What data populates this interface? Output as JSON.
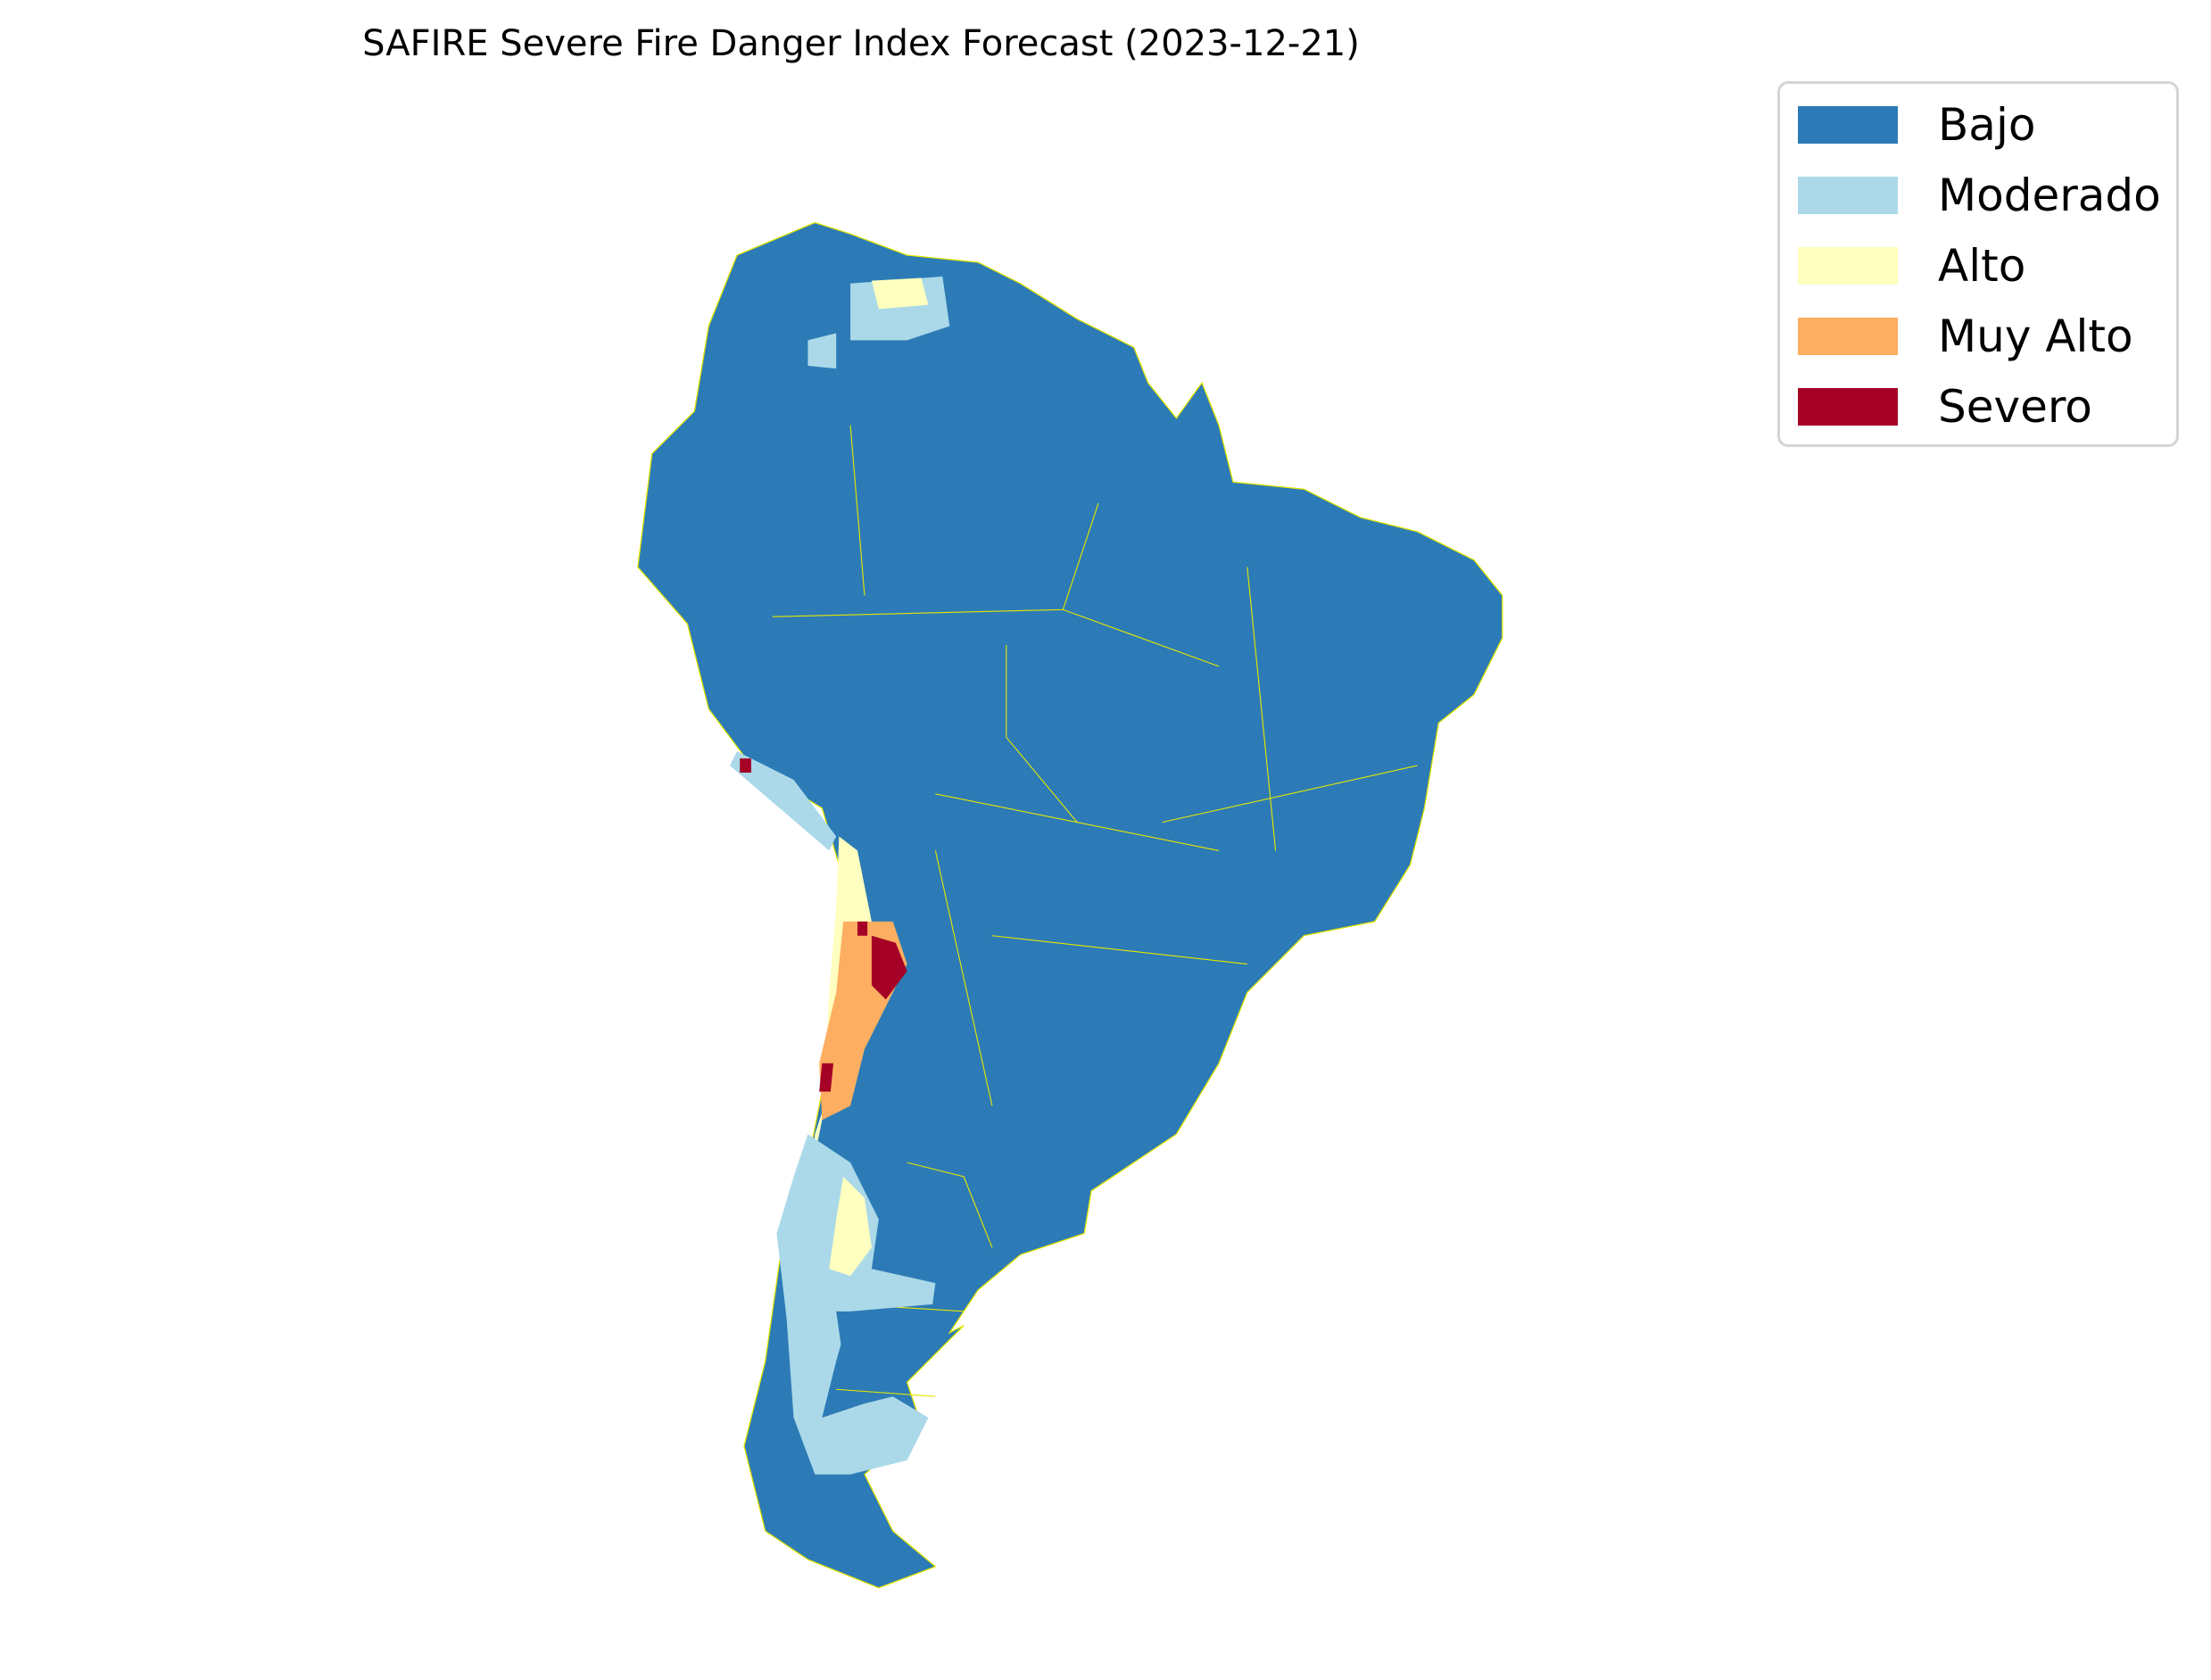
{
  "chart_data": {
    "type": "heatmap",
    "title": "SAFIRE Severe Fire Danger Index Forecast (2023-12-21)",
    "region": "South America",
    "legend_placement": "top-right",
    "categories": [
      {
        "label": "Bajo",
        "color": "#2c7bb6"
      },
      {
        "label": "Moderado",
        "color": "#abd9e9"
      },
      {
        "label": "Alto",
        "color": "#ffffbf"
      },
      {
        "label": "Muy Alto",
        "color": "#fdae61"
      },
      {
        "label": "Severo",
        "color": "#a50026"
      }
    ],
    "border_color": "#e6e600",
    "dominant_category": "Bajo"
  }
}
